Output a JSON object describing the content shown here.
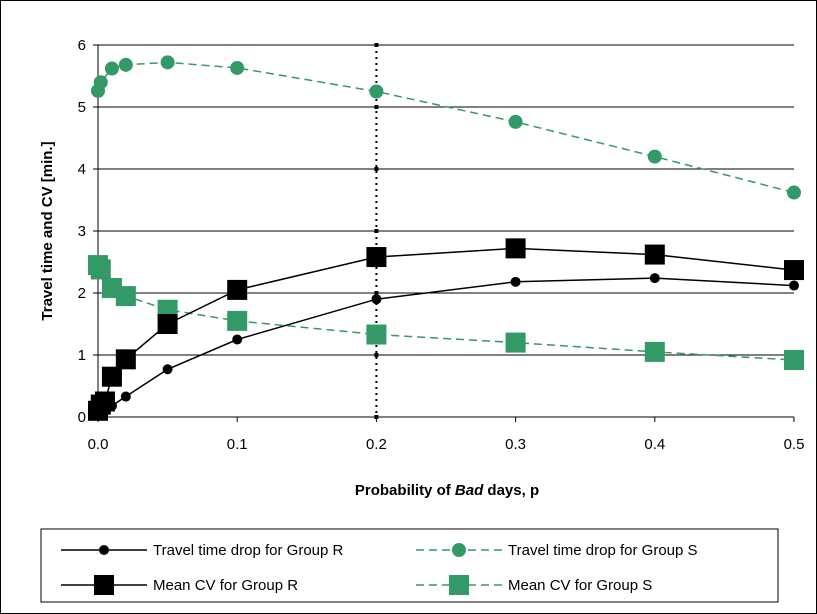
{
  "chart_data": {
    "type": "line",
    "title": "",
    "xlabel_parts": [
      "Probability of ",
      "Bad",
      " days, p"
    ],
    "ylabel": "Travel time and CV [min.]",
    "xlim": [
      0,
      0.5
    ],
    "ylim": [
      0,
      6
    ],
    "x_ticks": [
      "0.0",
      "0.1",
      "0.2",
      "0.3",
      "0.4",
      "0.5"
    ],
    "y_ticks": [
      "0",
      "1",
      "2",
      "3",
      "4",
      "5",
      "6"
    ],
    "grid": "horizontal",
    "vertical_marker": {
      "x": 0.2,
      "y_range": [
        0,
        6
      ],
      "style": "dotted",
      "color": "#000000"
    },
    "legend_position": "bottom",
    "series": [
      {
        "name": "Travel time drop for Group R",
        "color": "#000000",
        "dashed": false,
        "marker": "circle",
        "marker_size": "small",
        "points": [
          [
            0.0,
            0.05
          ],
          [
            0.001,
            0.1
          ],
          [
            0.005,
            0.13
          ],
          [
            0.01,
            0.18
          ],
          [
            0.02,
            0.33
          ],
          [
            0.05,
            0.77
          ],
          [
            0.1,
            1.25
          ],
          [
            0.2,
            1.9
          ],
          [
            0.3,
            2.18
          ],
          [
            0.4,
            2.24
          ],
          [
            0.5,
            2.12
          ]
        ]
      },
      {
        "name": "Travel time drop for Group S",
        "color": "#339966",
        "dashed": true,
        "marker": "circle",
        "marker_size": "large",
        "points": [
          [
            0.0,
            5.26
          ],
          [
            0.002,
            5.4
          ],
          [
            0.01,
            5.62
          ],
          [
            0.02,
            5.68
          ],
          [
            0.05,
            5.72
          ],
          [
            0.1,
            5.63
          ],
          [
            0.2,
            5.25
          ],
          [
            0.3,
            4.76
          ],
          [
            0.4,
            4.2
          ],
          [
            0.5,
            3.62
          ]
        ]
      },
      {
        "name": "Mean CV for Group R",
        "color": "#000000",
        "dashed": false,
        "marker": "square",
        "marker_size": "large",
        "points": [
          [
            0.0,
            0.1
          ],
          [
            0.002,
            0.2
          ],
          [
            0.005,
            0.25
          ],
          [
            0.01,
            0.65
          ],
          [
            0.02,
            0.93
          ],
          [
            0.05,
            1.5
          ],
          [
            0.1,
            2.05
          ],
          [
            0.2,
            2.58
          ],
          [
            0.3,
            2.72
          ],
          [
            0.4,
            2.62
          ],
          [
            0.5,
            2.37
          ]
        ]
      },
      {
        "name": "Mean CV for Group S",
        "color": "#339966",
        "dashed": true,
        "marker": "square",
        "marker_size": "large",
        "points": [
          [
            0.0,
            2.45
          ],
          [
            0.002,
            2.38
          ],
          [
            0.01,
            2.08
          ],
          [
            0.02,
            1.95
          ],
          [
            0.05,
            1.73
          ],
          [
            0.1,
            1.55
          ],
          [
            0.2,
            1.33
          ],
          [
            0.3,
            1.2
          ],
          [
            0.4,
            1.05
          ],
          [
            0.5,
            0.92
          ]
        ]
      }
    ]
  }
}
